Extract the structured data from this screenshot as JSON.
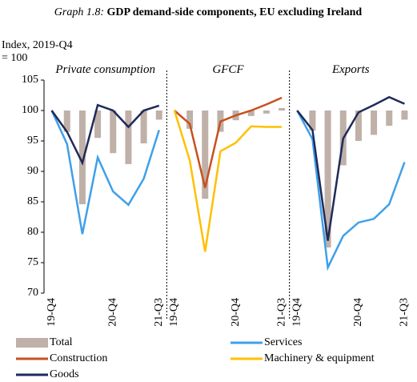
{
  "title_prefix": "Graph 1.8:",
  "title": "GDP demand-side components, EU excluding Ireland",
  "ylabel": "Index, 2019-Q4 = 100",
  "ylim": [
    70,
    105
  ],
  "yticks": [
    70,
    75,
    80,
    85,
    90,
    95,
    100,
    105
  ],
  "chart_data": [
    {
      "type": "combo",
      "title": "Private consumption",
      "categories": [
        "19-Q4",
        null,
        null,
        null,
        "20-Q4",
        null,
        null,
        "21-Q3"
      ],
      "series": [
        {
          "name": "Total",
          "type": "bar",
          "color": "#bfb0a8",
          "values": [
            100,
            96.5,
            84.6,
            95.5,
            93,
            91.2,
            94.6,
            98.5
          ]
        },
        {
          "name": "Services",
          "type": "line",
          "color": "#3fa0ea",
          "values": [
            100,
            94.5,
            79.7,
            92.3,
            86.7,
            84.5,
            88.8,
            96.8
          ]
        },
        {
          "name": "Goods",
          "type": "line",
          "color": "#1f2a5a",
          "values": [
            100,
            96.5,
            91.4,
            100.9,
            100,
            97.3,
            100,
            100.8
          ]
        }
      ]
    },
    {
      "type": "combo",
      "title": "GFCF",
      "categories": [
        "19-Q4",
        null,
        null,
        null,
        "20-Q4",
        null,
        null,
        "21-Q3"
      ],
      "series": [
        {
          "name": "Total",
          "type": "bar",
          "color": "#bfb0a8",
          "values": [
            100,
            97,
            85.5,
            96.5,
            98.4,
            99.1,
            99.5,
            100.4
          ]
        },
        {
          "name": "Construction",
          "type": "line",
          "color": "#c8501e",
          "values": [
            100,
            97.8,
            87.3,
            98.2,
            99.2,
            100,
            101,
            102.1
          ]
        },
        {
          "name": "Machinery & equipment",
          "type": "line",
          "color": "#ffc000",
          "values": [
            100,
            91.8,
            76.8,
            93.3,
            94.7,
            97.4,
            97.3,
            97.3
          ]
        }
      ]
    },
    {
      "type": "combo",
      "title": "Exports",
      "categories": [
        "19-Q4",
        null,
        null,
        null,
        "20-Q4",
        null,
        null,
        "21-Q3"
      ],
      "series": [
        {
          "name": "Total",
          "type": "bar",
          "color": "#bfb0a8",
          "values": [
            100,
            96.7,
            77.5,
            91,
            95,
            96,
            97.5,
            98.5
          ]
        },
        {
          "name": "Services",
          "type": "line",
          "color": "#3fa0ea",
          "values": [
            100,
            95.3,
            74.2,
            79.4,
            81.6,
            82.2,
            84.6,
            91.5
          ]
        },
        {
          "name": "Goods",
          "type": "line",
          "color": "#1f2a5a",
          "values": [
            100,
            96.8,
            78.6,
            95.4,
            99.7,
            100.9,
            102.2,
            101.1
          ]
        }
      ]
    }
  ]
}
